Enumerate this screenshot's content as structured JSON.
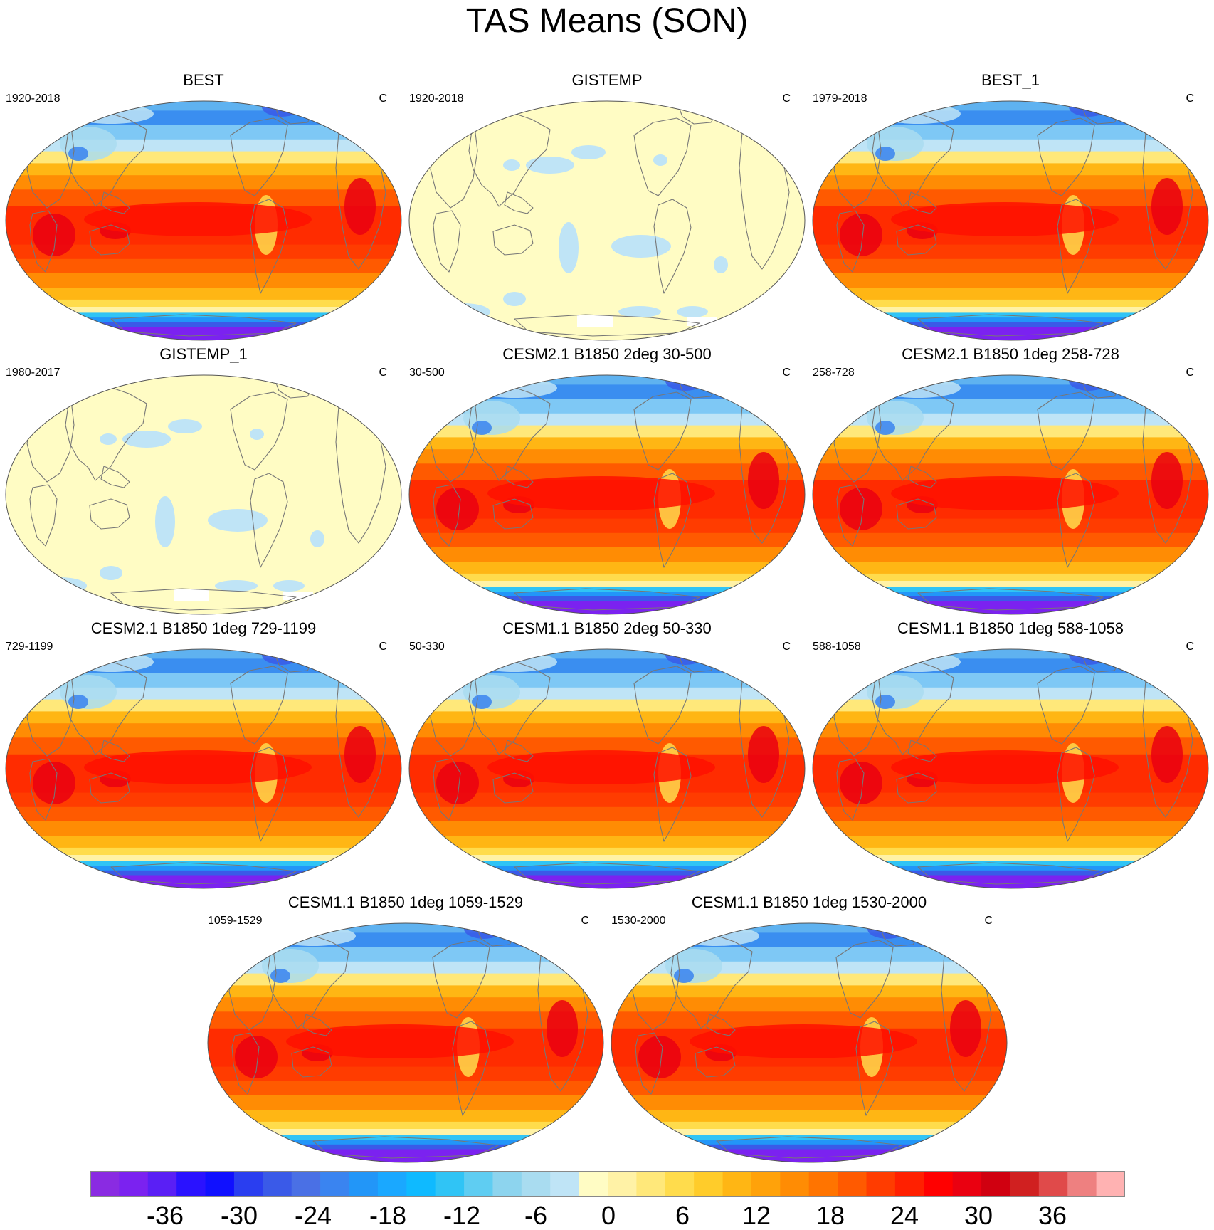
{
  "title": "TAS Means (SON)",
  "panels": [
    {
      "title": "BEST",
      "period": "1920-2018",
      "units": "C",
      "kind": "full"
    },
    {
      "title": "GISTEMP",
      "period": "1920-2018",
      "units": "C",
      "kind": "anomaly"
    },
    {
      "title": "BEST_1",
      "period": "1979-2018",
      "units": "C",
      "kind": "full"
    },
    {
      "title": "GISTEMP_1",
      "period": "1980-2017",
      "units": "C",
      "kind": "anomaly"
    },
    {
      "title": "CESM2.1 B1850 2deg 30-500",
      "period": "30-500",
      "units": "C",
      "kind": "full"
    },
    {
      "title": "CESM2.1 B1850 1deg 258-728",
      "period": "258-728",
      "units": "C",
      "kind": "full"
    },
    {
      "title": "CESM2.1 B1850 1deg 729-1199",
      "period": "729-1199",
      "units": "C",
      "kind": "full"
    },
    {
      "title": "CESM1.1 B1850 2deg 50-330",
      "period": "50-330",
      "units": "C",
      "kind": "full"
    },
    {
      "title": "CESM1.1 B1850 1deg 588-1058",
      "period": "588-1058",
      "units": "C",
      "kind": "full"
    },
    {
      "title": "CESM1.1 B1850 1deg 1059-1529",
      "period": "1059-1529",
      "units": "C",
      "kind": "full"
    },
    {
      "title": "CESM1.1 B1850 1deg 1530-2000",
      "period": "1530-2000",
      "units": "C",
      "kind": "full"
    }
  ],
  "colorbar": {
    "labels": [
      "-36",
      "-30",
      "-24",
      "-18",
      "-12",
      "-6",
      "0",
      "6",
      "12",
      "18",
      "24",
      "30",
      "36"
    ],
    "colors": [
      "#8a2be2",
      "#7b22f0",
      "#5a1ff5",
      "#2a12ff",
      "#1010ff",
      "#2a3ef0",
      "#3a5ae8",
      "#4a70e5",
      "#3a84f0",
      "#2296f8",
      "#1aa8ff",
      "#0fbaff",
      "#30c4f5",
      "#5fcdf2",
      "#8dd4ee",
      "#a9dcf0",
      "#bfe4f6",
      "#fffcc4",
      "#fff2a6",
      "#ffe87a",
      "#ffdc4c",
      "#ffcc2a",
      "#ffb614",
      "#ffa20a",
      "#ff8c04",
      "#ff7400",
      "#ff5a00",
      "#ff3c00",
      "#ff2000",
      "#ff0000",
      "#ea0010",
      "#d00010",
      "#d02020",
      "#e04a4a",
      "#ee8080",
      "#ffb2b2"
    ]
  }
}
